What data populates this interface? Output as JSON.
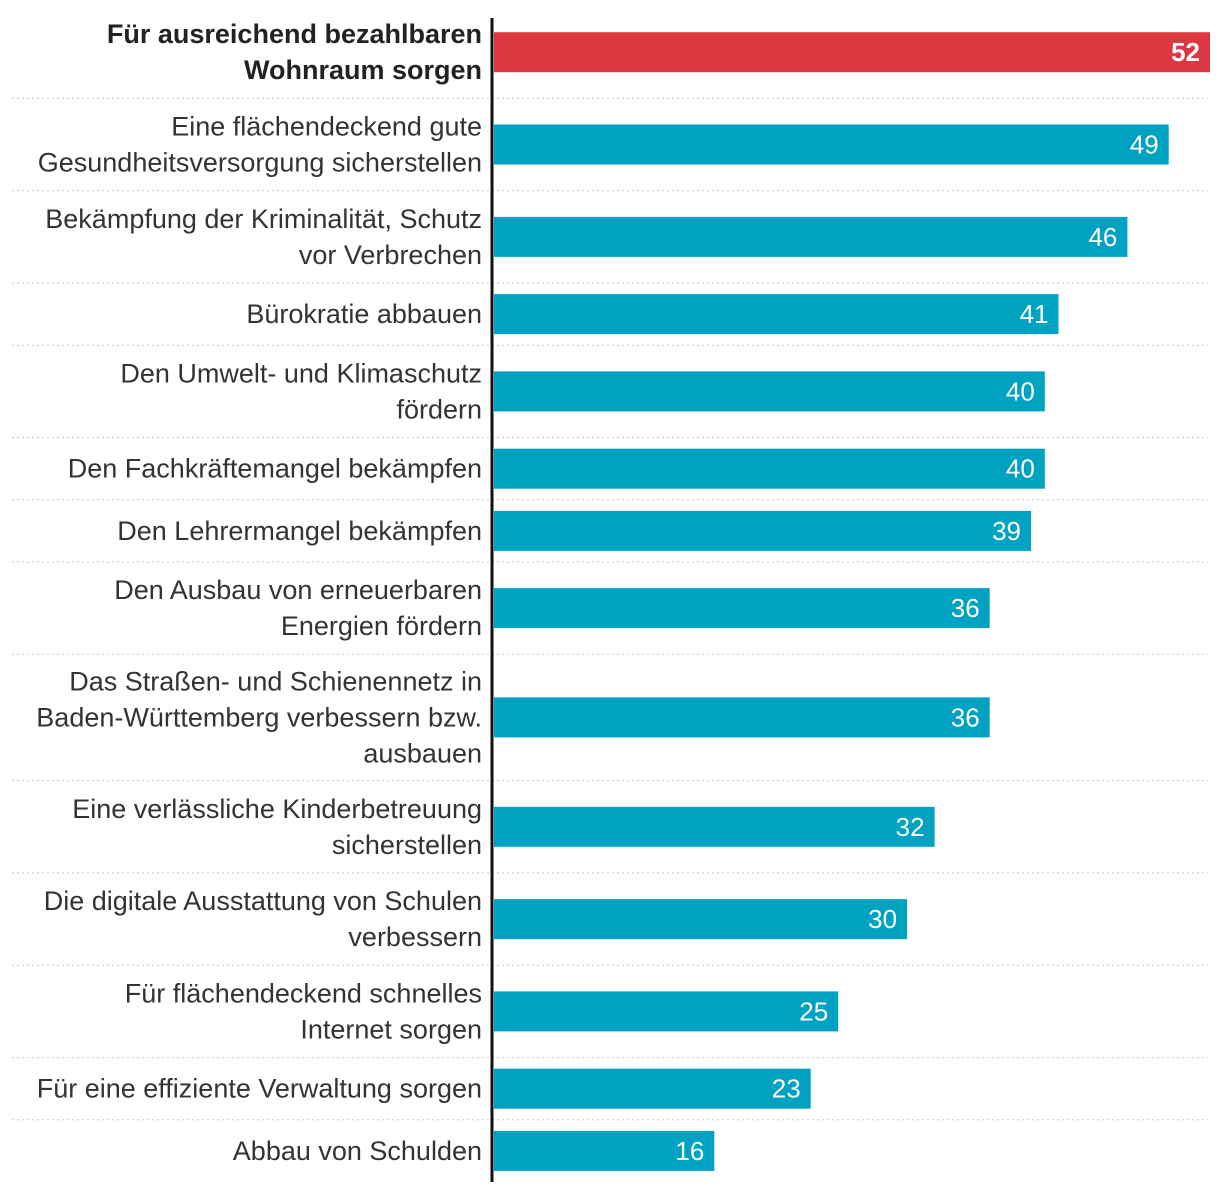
{
  "chart_data": {
    "type": "bar",
    "orientation": "horizontal",
    "title": "",
    "xlabel": "",
    "ylabel": "",
    "xlim": [
      0,
      52
    ],
    "grid": false,
    "highlight_index": 0,
    "colors": {
      "highlight": "#dc3842",
      "default": "#00a2c2",
      "value_text": "#ffffff",
      "label_text": "#333333",
      "axis": "#111111",
      "separator": "#c8c8c8"
    },
    "categories": [
      [
        "Für ausreichend bezahlbaren",
        "Wohnraum sorgen"
      ],
      [
        "Eine flächendeckend gute",
        "Gesundheitsversorgung sicherstellen"
      ],
      [
        "Bekämpfung der Kriminalität, Schutz",
        "vor Verbrechen"
      ],
      [
        "Bürokratie abbauen"
      ],
      [
        "Den Umwelt- und Klimaschutz",
        "fördern"
      ],
      [
        "Den Fachkräftemangel bekämpfen"
      ],
      [
        "Den Lehrermangel bekämpfen"
      ],
      [
        "Den Ausbau von erneuerbaren",
        "Energien fördern"
      ],
      [
        "Das Straßen- und Schienennetz in",
        "Baden-Württemberg verbessern bzw.",
        "ausbauen"
      ],
      [
        "Eine verlässliche Kinderbetreuung",
        "sicherstellen"
      ],
      [
        "Die digitale Ausstattung von Schulen",
        "verbessern"
      ],
      [
        "Für flächendeckend schnelles",
        "Internet sorgen"
      ],
      [
        "Für eine effiziente Verwaltung sorgen"
      ],
      [
        "Abbau von Schulden"
      ]
    ],
    "values": [
      52,
      49,
      46,
      41,
      40,
      40,
      39,
      36,
      36,
      32,
      30,
      25,
      23,
      16
    ]
  }
}
